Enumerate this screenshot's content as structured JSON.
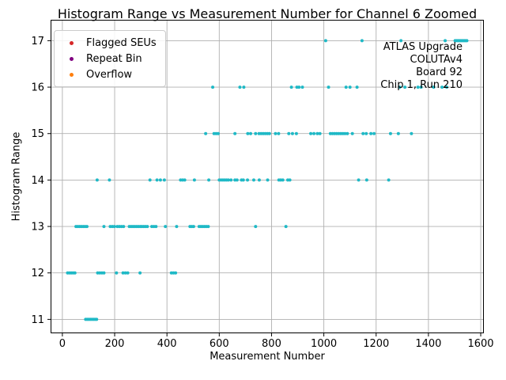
{
  "title": "Histogram Range vs Measurement Number for Channel 6 Zoomed",
  "xlabel": "Measurement Number",
  "ylabel": "Histogram Range",
  "annotation": {
    "lines": [
      "ATLAS Upgrade",
      "COLUTAv4",
      "Board 92",
      "Chip 1, Run 210"
    ]
  },
  "legend": {
    "position": "upper-left",
    "items": [
      {
        "label": "Flagged SEUs",
        "color": "#d62728"
      },
      {
        "label": "Repeat Bin",
        "color": "#800080"
      },
      {
        "label": "Overflow",
        "color": "#ff7f0e"
      }
    ]
  },
  "chart_data": {
    "type": "scatter",
    "title": "Histogram Range vs Measurement Number for Channel 6 Zoomed",
    "xlabel": "Measurement Number",
    "ylabel": "Histogram Range",
    "xlim": [
      -45,
      1612
    ],
    "ylim": [
      10.7,
      17.45
    ],
    "xticks": [
      0,
      200,
      400,
      600,
      800,
      1000,
      1200,
      1400,
      1600
    ],
    "yticks": [
      11,
      12,
      13,
      14,
      15,
      16,
      17
    ],
    "grid": true,
    "point_color": "#1fb9c6",
    "series": [
      {
        "name": "Flagged SEUs",
        "color": "#d62728",
        "points": []
      },
      {
        "name": "Repeat Bin",
        "color": "#800080",
        "points": []
      },
      {
        "name": "Overflow",
        "color": "#ff7f0e",
        "points": []
      },
      {
        "name": "",
        "color": "#1fb9c6",
        "points": [
          [
            89,
            11
          ],
          [
            95,
            11
          ],
          [
            101,
            11
          ],
          [
            107,
            11
          ],
          [
            113,
            11
          ],
          [
            119,
            11
          ],
          [
            125,
            11
          ],
          [
            131,
            11
          ],
          [
            20,
            12
          ],
          [
            27,
            12
          ],
          [
            34,
            12
          ],
          [
            41,
            12
          ],
          [
            48,
            12
          ],
          [
            135,
            12
          ],
          [
            143,
            12
          ],
          [
            151,
            12
          ],
          [
            159,
            12
          ],
          [
            207,
            12
          ],
          [
            232,
            12
          ],
          [
            241,
            12
          ],
          [
            250,
            12
          ],
          [
            297,
            12
          ],
          [
            417,
            12
          ],
          [
            425,
            12
          ],
          [
            433,
            12
          ],
          [
            52,
            13
          ],
          [
            59,
            13
          ],
          [
            66,
            13
          ],
          [
            73,
            13
          ],
          [
            80,
            13
          ],
          [
            87,
            13
          ],
          [
            94,
            13
          ],
          [
            159,
            13
          ],
          [
            183,
            13
          ],
          [
            191,
            13
          ],
          [
            199,
            13
          ],
          [
            210,
            13
          ],
          [
            218,
            13
          ],
          [
            226,
            13
          ],
          [
            234,
            13
          ],
          [
            256,
            13
          ],
          [
            263,
            13
          ],
          [
            270,
            13
          ],
          [
            277,
            13
          ],
          [
            284,
            13
          ],
          [
            291,
            13
          ],
          [
            298,
            13
          ],
          [
            304,
            13
          ],
          [
            311,
            13
          ],
          [
            318,
            13
          ],
          [
            325,
            13
          ],
          [
            342,
            13
          ],
          [
            350,
            13
          ],
          [
            358,
            13
          ],
          [
            394,
            13
          ],
          [
            437,
            13
          ],
          [
            488,
            13
          ],
          [
            495,
            13
          ],
          [
            502,
            13
          ],
          [
            523,
            13
          ],
          [
            530,
            13
          ],
          [
            537,
            13
          ],
          [
            544,
            13
          ],
          [
            551,
            13
          ],
          [
            558,
            13
          ],
          [
            739,
            13
          ],
          [
            855,
            13
          ],
          [
            133,
            14
          ],
          [
            180,
            14
          ],
          [
            335,
            14
          ],
          [
            362,
            14
          ],
          [
            375,
            14
          ],
          [
            390,
            14
          ],
          [
            452,
            14
          ],
          [
            460,
            14
          ],
          [
            468,
            14
          ],
          [
            505,
            14
          ],
          [
            560,
            14
          ],
          [
            600,
            14
          ],
          [
            607,
            14
          ],
          [
            614,
            14
          ],
          [
            621,
            14
          ],
          [
            628,
            14
          ],
          [
            635,
            14
          ],
          [
            645,
            14
          ],
          [
            660,
            14
          ],
          [
            668,
            14
          ],
          [
            685,
            14
          ],
          [
            692,
            14
          ],
          [
            708,
            14
          ],
          [
            732,
            14
          ],
          [
            753,
            14
          ],
          [
            785,
            14
          ],
          [
            828,
            14
          ],
          [
            835,
            14
          ],
          [
            843,
            14
          ],
          [
            862,
            14
          ],
          [
            870,
            14
          ],
          [
            1133,
            14
          ],
          [
            1164,
            14
          ],
          [
            1248,
            14
          ],
          [
            548,
            15
          ],
          [
            580,
            15
          ],
          [
            588,
            15
          ],
          [
            596,
            15
          ],
          [
            660,
            15
          ],
          [
            709,
            15
          ],
          [
            720,
            15
          ],
          [
            739,
            15
          ],
          [
            752,
            15
          ],
          [
            760,
            15
          ],
          [
            768,
            15
          ],
          [
            776,
            15
          ],
          [
            784,
            15
          ],
          [
            792,
            15
          ],
          [
            815,
            15
          ],
          [
            827,
            15
          ],
          [
            866,
            15
          ],
          [
            880,
            15
          ],
          [
            895,
            15
          ],
          [
            950,
            15
          ],
          [
            962,
            15
          ],
          [
            975,
            15
          ],
          [
            985,
            15
          ],
          [
            1025,
            15
          ],
          [
            1033,
            15
          ],
          [
            1041,
            15
          ],
          [
            1049,
            15
          ],
          [
            1057,
            15
          ],
          [
            1065,
            15
          ],
          [
            1073,
            15
          ],
          [
            1081,
            15
          ],
          [
            1090,
            15
          ],
          [
            1109,
            15
          ],
          [
            1150,
            15
          ],
          [
            1162,
            15
          ],
          [
            1180,
            15
          ],
          [
            1192,
            15
          ],
          [
            1255,
            15
          ],
          [
            1285,
            15
          ],
          [
            1335,
            15
          ],
          [
            575,
            16
          ],
          [
            679,
            16
          ],
          [
            694,
            16
          ],
          [
            876,
            16
          ],
          [
            897,
            16
          ],
          [
            905,
            16
          ],
          [
            918,
            16
          ],
          [
            1018,
            16
          ],
          [
            1085,
            16
          ],
          [
            1100,
            16
          ],
          [
            1127,
            16
          ],
          [
            1290,
            16
          ],
          [
            1310,
            16
          ],
          [
            1360,
            16
          ],
          [
            1372,
            16
          ],
          [
            1420,
            16
          ],
          [
            1452,
            16
          ],
          [
            1470,
            16
          ],
          [
            1007,
            17
          ],
          [
            1146,
            17
          ],
          [
            1295,
            17
          ],
          [
            1464,
            17
          ],
          [
            1502,
            17
          ],
          [
            1507,
            17
          ],
          [
            1512,
            17
          ],
          [
            1517,
            17
          ],
          [
            1522,
            17
          ],
          [
            1527,
            17
          ],
          [
            1532,
            17
          ],
          [
            1537,
            17
          ],
          [
            1542,
            17
          ],
          [
            1547,
            17
          ]
        ]
      }
    ]
  }
}
